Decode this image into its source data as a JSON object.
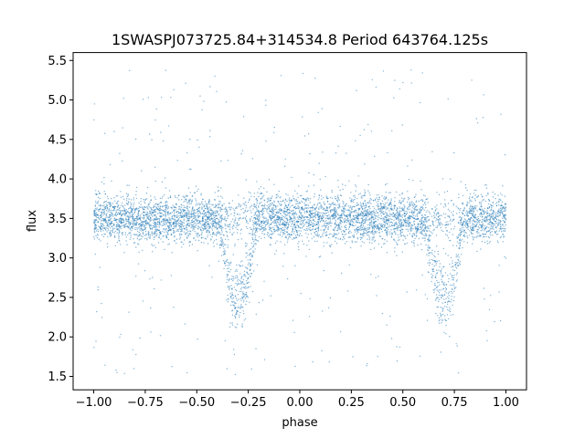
{
  "chart_data": {
    "type": "scatter",
    "title": "1SWASPJ073725.84+314534.8 Period 643764.125s",
    "xlabel": "phase",
    "ylabel": "flux",
    "xlim": [
      -1.1,
      1.1
    ],
    "ylim": [
      1.33,
      5.6
    ],
    "x_ticks": [
      -1.0,
      -0.75,
      -0.5,
      -0.25,
      0.0,
      0.25,
      0.5,
      0.75,
      1.0
    ],
    "x_tick_labels": [
      "−1.00",
      "−0.75",
      "−0.50",
      "−0.25",
      "0.00",
      "0.25",
      "0.50",
      "0.75",
      "1.00"
    ],
    "y_ticks": [
      1.5,
      2.0,
      2.5,
      3.0,
      3.5,
      4.0,
      4.5,
      5.0,
      5.5
    ],
    "y_tick_labels": [
      "1.5",
      "2.0",
      "2.5",
      "3.0",
      "3.5",
      "4.0",
      "4.5",
      "5.0",
      "5.5"
    ],
    "grid": false,
    "marker_color": "#1f77b4",
    "series": [
      {
        "phase_range": [
          -1.0,
          1.0
        ],
        "baseline_flux": 3.5,
        "baseline_scatter": 0.15,
        "flux_min": 1.5,
        "flux_max": 5.4,
        "dips": [
          {
            "center_phase": -0.3,
            "min_flux": 2.3,
            "half_width": 0.09
          },
          {
            "center_phase": 0.7,
            "min_flux": 2.3,
            "half_width": 0.09
          }
        ]
      }
    ]
  }
}
